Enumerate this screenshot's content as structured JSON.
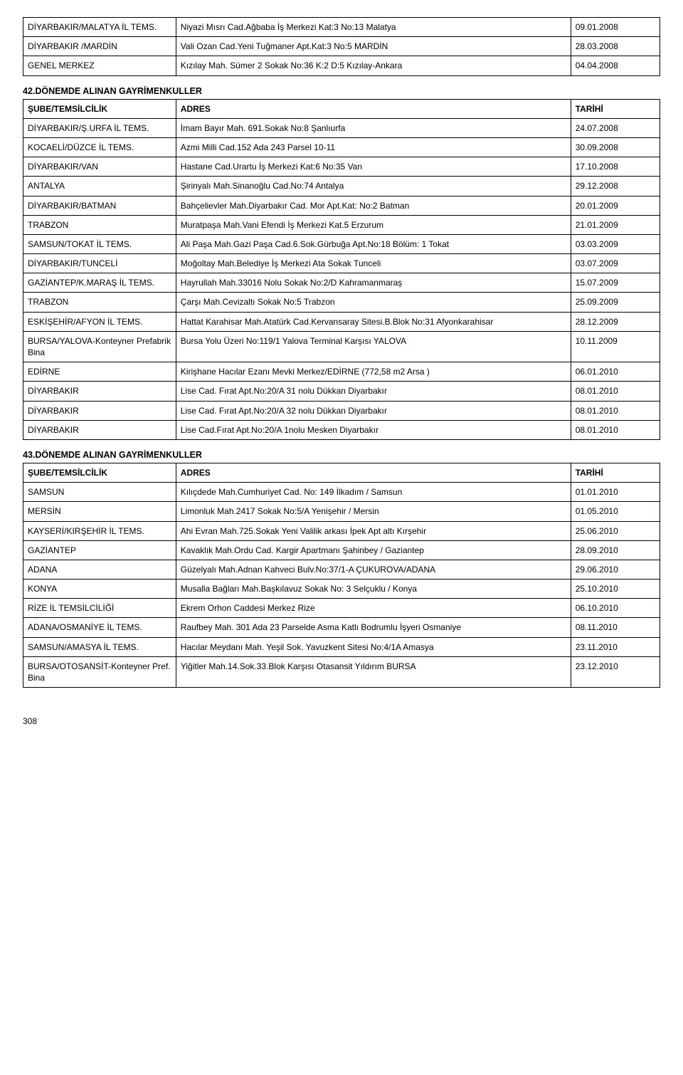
{
  "table_pre": {
    "rows": [
      {
        "sube": "DİYARBAKIR/MALATYA İL TEMS.",
        "adres": "Niyazi Mısrı Cad.Ağbaba İş Merkezi Kat:3 No:13 Malatya",
        "tarih": "09.01.2008"
      },
      {
        "sube": "DİYARBAKIR /MARDİN",
        "adres": "Vali Ozan Cad.Yeni Tuğmaner Apt.Kat:3 No:5 MARDİN",
        "tarih": "28.03.2008"
      },
      {
        "sube": "GENEL MERKEZ",
        "adres": "Kızılay Mah. Sümer 2 Sokak No:36 K:2 D:5 Kızılay-Ankara",
        "tarih": "04.04.2008"
      }
    ]
  },
  "section42": {
    "title": "42.DÖNEMDE ALINAN GAYRİMENKULLER",
    "headers": {
      "sube": "ŞUBE/TEMSİLCİLİK",
      "adres": "ADRES",
      "tarih": "TARİHİ"
    },
    "rows": [
      {
        "sube": "DİYARBAKIR/Ş.URFA İL TEMS.",
        "adres": "İmam Bayır Mah. 691.Sokak No:8 Şanlıurfa",
        "tarih": "24.07.2008"
      },
      {
        "sube": "KOCAELİ/DÜZCE İL TEMS.",
        "adres": "Azmi Milli Cad.152 Ada 243 Parsel 10-11",
        "tarih": "30.09.2008"
      },
      {
        "sube": "DİYARBAKIR/VAN",
        "adres": "Hastane Cad.Urartu İş Merkezi Kat:6 No:35 Van",
        "tarih": "17.10.2008"
      },
      {
        "sube": "ANTALYA",
        "adres": "Şirinyalı Mah.Sinanoğlu Cad.No:74 Antalya",
        "tarih": "29.12.2008"
      },
      {
        "sube": "DİYARBAKIR/BATMAN",
        "adres": "Bahçelievler Mah.Diyarbakır Cad. Mor Apt.Kat: No:2 Batman",
        "tarih": "20.01.2009"
      },
      {
        "sube": "TRABZON",
        "adres": "Muratpaşa Mah.Vani Efendi İş Merkezi Kat.5 Erzurum",
        "tarih": "21.01.2009"
      },
      {
        "sube": "SAMSUN/TOKAT İL TEMS.",
        "adres": "Ali Paşa Mah.Gazi Paşa Cad.6.Sok.Gürbuğa Apt.No:18 Bölüm: 1 Tokat",
        "tarih": "03.03.2009"
      },
      {
        "sube": "DİYARBAKIR/TUNCELİ",
        "adres": "Moğoltay Mah.Belediye İş Merkezi Ata Sokak Tunceli",
        "tarih": "03.07.2009"
      },
      {
        "sube": "GAZİANTEP/K.MARAŞ İL TEMS.",
        "adres": "Hayrullah Mah.33016 Nolu Sokak No:2/D Kahramanmaraş",
        "tarih": "15.07.2009"
      },
      {
        "sube": "TRABZON",
        "adres": "Çarşı Mah.Cevizaltı Sokak No:5 Trabzon",
        "tarih": "25.09.2009"
      },
      {
        "sube": "ESKİŞEHİR/AFYON İL TEMS.",
        "adres": "Hattat Karahisar Mah.Atatürk Cad.Kervansaray Sitesi.B.Blok No:31 Afyonkarahisar",
        "tarih": "28.12.2009"
      },
      {
        "sube": "BURSA/YALOVA-Konteyner Prefabrik Bina",
        "adres": "Bursa Yolu Üzeri No:119/1 Yalova Terminal Karşısı YALOVA",
        "tarih": "10.11.2009"
      },
      {
        "sube": "EDİRNE",
        "adres": "Kirişhane Hacılar Ezanı Mevki Merkez/EDİRNE  (772,58 m2 Arsa )",
        "tarih": "06.01.2010"
      },
      {
        "sube": "DİYARBAKIR",
        "adres": "Lise Cad. Fırat Apt.No:20/A 31 nolu Dükkan Diyarbakır",
        "tarih": "08.01.2010"
      },
      {
        "sube": "DİYARBAKIR",
        "adres": "Lise Cad. Fırat Apt.No:20/A 32 nolu Dükkan Diyarbakır",
        "tarih": "08.01.2010"
      },
      {
        "sube": "DİYARBAKIR",
        "adres": "Lise Cad.Fırat Apt.No:20/A 1nolu Mesken Diyarbakır",
        "tarih": "08.01.2010"
      }
    ]
  },
  "section43": {
    "title": "43.DÖNEMDE ALINAN GAYRİMENKULLER",
    "headers": {
      "sube": "ŞUBE/TEMSİLCİLİK",
      "adres": "ADRES",
      "tarih": "TARİHİ"
    },
    "rows": [
      {
        "sube": "SAMSUN",
        "adres": "Kılıçdede Mah.Cumhuriyet Cad. No: 149 İlkadım / Samsun",
        "tarih": "01.01.2010"
      },
      {
        "sube": "MERSİN",
        "adres": "Limonluk Mah.2417 Sokak No:5/A Yenişehir / Mersin",
        "tarih": "01.05.2010"
      },
      {
        "sube": "KAYSERİ/KIRŞEHİR İL TEMS.",
        "adres": "Ahi Evran Mah.725.Sokak Yeni Valilik arkası İpek Apt altı Kırşehir",
        "tarih": "25.06.2010"
      },
      {
        "sube": "GAZİANTEP",
        "adres": "Kavaklık Mah.Ordu Cad. Kargir Apartmanı Şahinbey / Gaziantep",
        "tarih": "28.09.2010"
      },
      {
        "sube": "ADANA",
        "adres": "Güzelyalı Mah.Adnan Kahveci Bulv.No:37/1-A ÇUKUROVA/ADANA",
        "tarih": "29.06.2010"
      },
      {
        "sube": "KONYA",
        "adres": "Musalla Bağları Mah.Başkılavuz Sokak No: 3 Selçuklu / Konya",
        "tarih": "25.10.2010"
      },
      {
        "sube": "RİZE İL TEMSİLCİLİĞİ",
        "adres": "Ekrem Orhon Caddesi Merkez Rize",
        "tarih": "06.10.2010"
      },
      {
        "sube": "ADANA/OSMANİYE İL TEMS.",
        "adres": "Raufbey Mah. 301 Ada 23 Parselde Asma Katlı Bodrumlu İşyeri Osmaniye",
        "tarih": "08.11.2010"
      },
      {
        "sube": "SAMSUN/AMASYA İL TEMS.",
        "adres": "Hacılar Meydanı Mah. Yeşil Sok. Yavuzkent Sitesi No:4/1A Amasya",
        "tarih": "23.11.2010"
      },
      {
        "sube": "BURSA/OTOSANSİT-Konteyner Pref. Bina",
        "adres": "Yiğitler Mah.14.Sok.33.Blok Karşısı Otasansit Yıldırım BURSA",
        "tarih": "23.12.2010"
      }
    ]
  },
  "page_number": "308"
}
